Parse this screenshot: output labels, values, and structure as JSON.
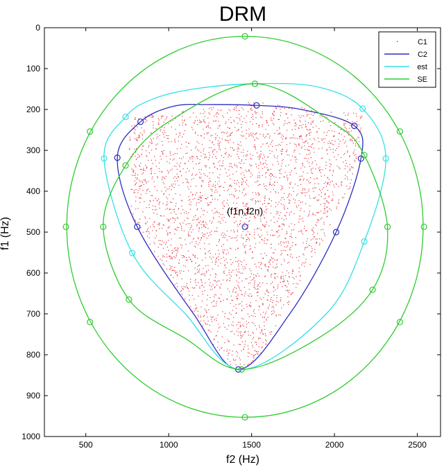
{
  "chart_data": {
    "type": "scatter",
    "title": "DRM",
    "xlabel": "f2 (Hz)",
    "ylabel": "f1 (Hz)",
    "xlim": [
      250,
      2640
    ],
    "ylim": [
      0,
      1000
    ],
    "y_reversed": true,
    "xticks": [
      500,
      1000,
      1500,
      2000,
      2500
    ],
    "yticks": [
      0,
      100,
      200,
      300,
      400,
      500,
      600,
      700,
      800,
      900,
      1000
    ],
    "grid": false,
    "legend_position": "top-right",
    "annotation": {
      "text": "(f1n,f2n)",
      "x": 1460,
      "y": 487
    },
    "legend": [
      {
        "label": "C1",
        "style": "dots",
        "color": "#e8303a"
      },
      {
        "label": "C2",
        "style": "line",
        "color": "#2b2bc0"
      },
      {
        "label": "est",
        "style": "line",
        "color": "#33e0e6"
      },
      {
        "label": "SE",
        "style": "line",
        "color": "#2ecc2e"
      }
    ],
    "series": [
      {
        "name": "C1",
        "type": "scatter",
        "color": "#e8303a",
        "note_points": "randomly distributed dots inside triangular region",
        "region": {
          "x": [
            760,
            1500,
            2180,
            2100,
            1560,
            1420,
            1300,
            760
          ],
          "y": [
            220,
            180,
            210,
            390,
            800,
            840,
            800,
            450
          ]
        },
        "count": 3000
      },
      {
        "name": "C2",
        "type": "line",
        "color": "#2b2bc0",
        "x": [
          830,
          1030,
          1240,
          1530,
          1800,
          2120,
          2160,
          2010,
          1730,
          1420,
          1150,
          810,
          690,
          830
        ],
        "y": [
          230,
          192,
          188,
          190,
          200,
          240,
          320,
          500,
          700,
          836,
          700,
          487,
          318,
          230
        ],
        "markers_x": [
          830,
          1530,
          2120,
          2160,
          2010,
          1420,
          810,
          690,
          1460
        ],
        "markers_y": [
          230,
          190,
          240,
          320,
          500,
          836,
          487,
          318,
          487
        ]
      },
      {
        "name": "est",
        "type": "line",
        "color": "#33e0e6",
        "x": [
          740,
          900,
          1150,
          1520,
          1900,
          2170,
          2310,
          2180,
          1950,
          1440,
          1100,
          780,
          610,
          740
        ],
        "y": [
          218,
          175,
          150,
          137,
          145,
          198,
          320,
          523,
          700,
          836,
          700,
          551,
          320,
          218
        ],
        "markers_x": [
          740,
          1520,
          2170,
          2310,
          2180,
          1440,
          780,
          610
        ],
        "markers_y": [
          218,
          137,
          198,
          320,
          523,
          836,
          551,
          320
        ]
      },
      {
        "name": "SE",
        "type": "line",
        "color": "#2ecc2e",
        "shape": "rounded-triangle",
        "x": [
          740,
          1000,
          1520,
          2000,
          2180,
          2320,
          2230,
          1900,
          1440,
          1100,
          760,
          605,
          740
        ],
        "y": [
          337,
          230,
          137,
          235,
          312,
          487,
          641,
          760,
          836,
          760,
          665,
          487,
          337
        ],
        "markers_x": [
          740,
          1520,
          2180,
          2320,
          2230,
          1440,
          760,
          605
        ],
        "markers_y": [
          337,
          137,
          312,
          487,
          641,
          836,
          665,
          487
        ]
      },
      {
        "name": "SE",
        "type": "ellipse",
        "color": "#2ecc2e",
        "center_x": 1460,
        "center_y": 487,
        "radius_x": 1075,
        "radius_y": 466,
        "markers_x": [
          1460,
          2395,
          2540,
          2395,
          1460,
          525,
          380,
          525
        ],
        "markers_y": [
          21,
          254,
          487,
          720,
          953,
          720,
          487,
          254
        ]
      }
    ]
  }
}
